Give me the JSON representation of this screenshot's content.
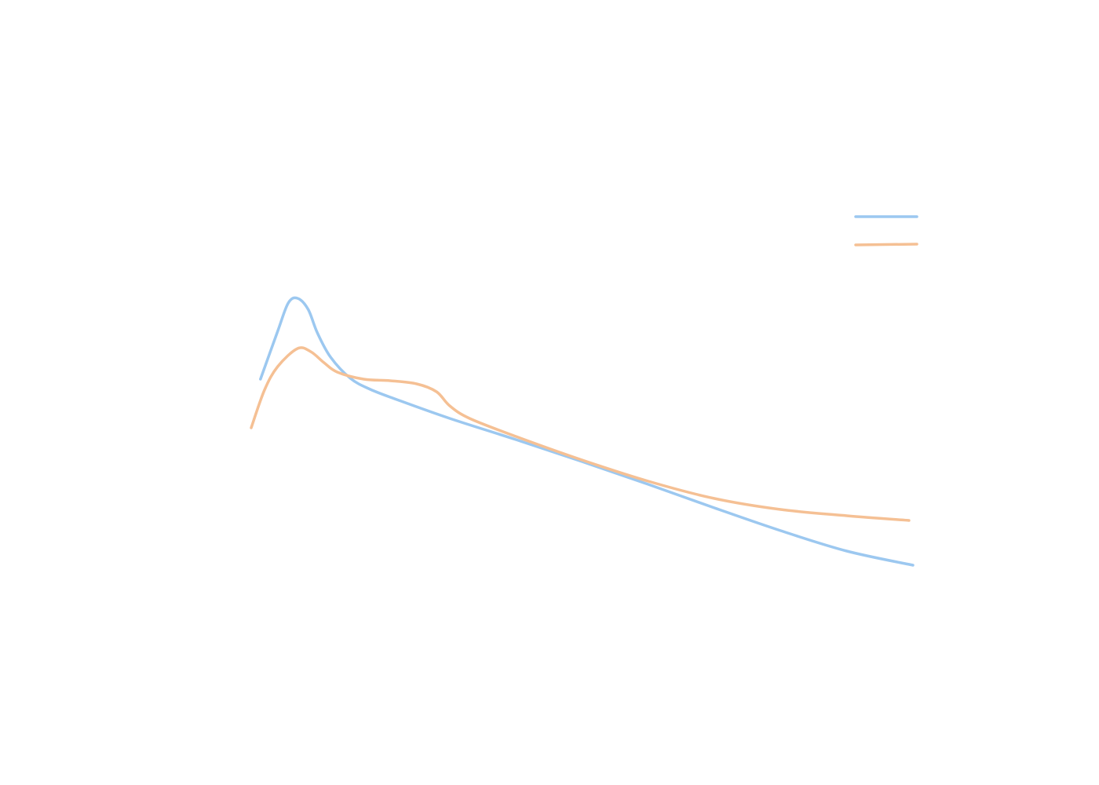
{
  "chart_data": {
    "type": "line",
    "title": "",
    "xlabel": "",
    "ylabel": "",
    "axes_visible": false,
    "grid": false,
    "legend": {
      "placement": "top-right",
      "labels_visible": false
    },
    "xlim": [
      0,
      100
    ],
    "ylim": [
      0,
      100
    ],
    "series": [
      {
        "color": "#9cc8f0",
        "points": [
          [
            1.4,
            55.4
          ],
          [
            4.0,
            67.6
          ],
          [
            5.6,
            74.8
          ],
          [
            7.0,
            76.0
          ],
          [
            8.6,
            73.2
          ],
          [
            10.0,
            67.2
          ],
          [
            12.0,
            61.0
          ],
          [
            15.0,
            55.6
          ],
          [
            18.0,
            52.8
          ],
          [
            22.0,
            50.2
          ],
          [
            30.0,
            45.4
          ],
          [
            40.0,
            40.0
          ],
          [
            50.0,
            34.4
          ],
          [
            60.0,
            28.6
          ],
          [
            70.0,
            22.6
          ],
          [
            80.0,
            16.8
          ],
          [
            90.0,
            11.6
          ],
          [
            100.0,
            8.0
          ]
        ]
      },
      {
        "color": "#f5c094",
        "points": [
          [
            0.0,
            43.0
          ],
          [
            2.0,
            52.6
          ],
          [
            4.0,
            58.6
          ],
          [
            7.0,
            63.2
          ],
          [
            9.0,
            62.4
          ],
          [
            11.0,
            59.6
          ],
          [
            13.0,
            57.2
          ],
          [
            17.0,
            55.4
          ],
          [
            21.0,
            55.0
          ],
          [
            25.0,
            54.2
          ],
          [
            28.0,
            52.2
          ],
          [
            30.0,
            48.6
          ],
          [
            33.0,
            45.4
          ],
          [
            40.0,
            40.8
          ],
          [
            50.0,
            34.8
          ],
          [
            60.0,
            29.4
          ],
          [
            70.0,
            25.0
          ],
          [
            80.0,
            22.2
          ],
          [
            90.0,
            20.6
          ],
          [
            99.4,
            19.4
          ]
        ]
      }
    ]
  }
}
